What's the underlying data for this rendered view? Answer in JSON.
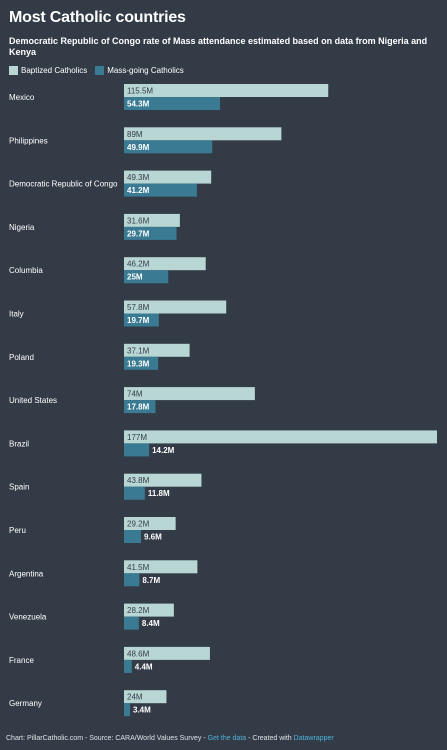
{
  "title": "Most Catholic countries",
  "subtitle": "Democratic Republic of Congo rate of Mass attendance estimated based on data from Nigeria and Kenya",
  "legend": {
    "baptized": "Baptized Catholics",
    "mass": "Mass-going Catholics"
  },
  "colors": {
    "baptized": "#b8d6d3",
    "mass": "#3a7b93",
    "background": "#333b47",
    "link": "#4fb3d9"
  },
  "footer": {
    "prefix": "Chart: PillarCatholic.com - Source: CARA/World Values Survey - ",
    "get_data": "Get the data",
    "middle": " - Created with ",
    "tool": "Datawrapper"
  },
  "chart_data": {
    "type": "bar",
    "orientation": "horizontal",
    "categories": [
      "Mexico",
      "Philippines",
      "Democratic Republic of Congo",
      "Nigeria",
      "Columbia",
      "Italy",
      "Poland",
      "United States",
      "Brazil",
      "Spain",
      "Peru",
      "Argentina",
      "Venezuela",
      "France",
      "Germany"
    ],
    "series": [
      {
        "name": "Baptized Catholics",
        "values": [
          115.5,
          89,
          49.3,
          31.6,
          46.2,
          57.8,
          37.1,
          74,
          177,
          43.8,
          29.2,
          41.5,
          28.2,
          48.6,
          24
        ],
        "labels": [
          "115.5M",
          "89M",
          "49.3M",
          "31.6M",
          "46.2M",
          "57.8M",
          "37.1M",
          "74M",
          "177M",
          "43.8M",
          "29.2M",
          "41.5M",
          "28.2M",
          "48.6M",
          "24M"
        ]
      },
      {
        "name": "Mass-going Catholics",
        "values": [
          54.3,
          49.9,
          41.2,
          29.7,
          25,
          19.7,
          19.3,
          17.8,
          14.2,
          11.8,
          9.6,
          8.7,
          8.4,
          4.4,
          3.4
        ],
        "labels": [
          "54.3M",
          "49.9M",
          "41.2M",
          "29.7M",
          "25M",
          "19.7M",
          "19.3M",
          "17.8M",
          "14.2M",
          "11.8M",
          "9.6M",
          "8.7M",
          "8.4M",
          "4.4M",
          "3.4M"
        ]
      }
    ],
    "xlim": [
      0,
      177
    ]
  }
}
